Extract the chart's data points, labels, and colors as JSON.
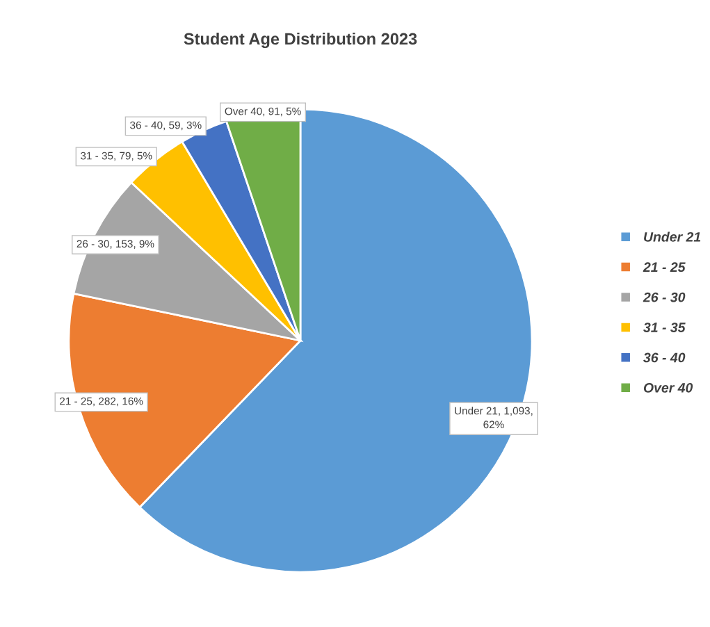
{
  "chart_data": {
    "type": "pie",
    "title": "Student Age Distribution 2023",
    "categories": [
      "Under 21",
      "21 - 25",
      "26 - 30",
      "31 - 35",
      "36 - 40",
      "Over 40"
    ],
    "values": [
      1093,
      282,
      153,
      79,
      59,
      91
    ],
    "colors": [
      "#5b9bd5",
      "#ed7d31",
      "#a5a5a5",
      "#ffc000",
      "#4472c4",
      "#70ad47"
    ],
    "value_labels": [
      "Under 21, 1,093,\n62%",
      "21 - 25, 282, 16%",
      "26 - 30, 153, 9%",
      "31 - 35, 79, 5%",
      "36 - 40, 59, 3%",
      "Over 40, 91, 5%"
    ],
    "legend": "right"
  }
}
